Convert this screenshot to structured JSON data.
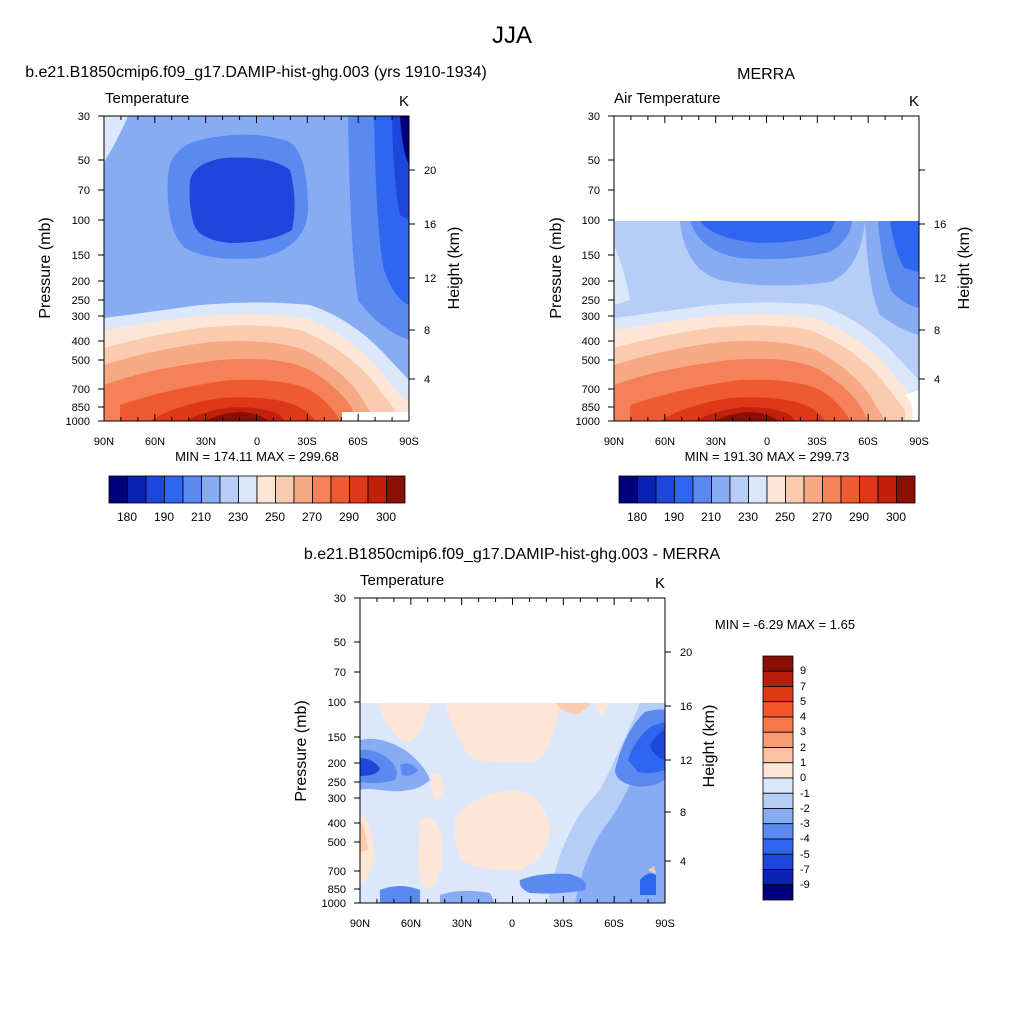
{
  "suptitle": "JJA",
  "chart_data": [
    {
      "type": "contour",
      "panel": "model",
      "title": "b.e21.B1850cmip6.f09_g17.DAMIP-hist-ghg.003 (yrs 1910-1934)",
      "left_label": "Temperature",
      "right_label": "K",
      "ylabel": "Pressure (mb)",
      "ylabel_right": "Height (km)",
      "x_ticks": [
        "90N",
        "60N",
        "30N",
        "0",
        "30S",
        "60S",
        "90S"
      ],
      "y_ticks": [
        "30",
        "50",
        "70",
        "100",
        "150",
        "200",
        "250",
        "300",
        "400",
        "500",
        "700",
        "850",
        "1000"
      ],
      "y_ticks_right": [
        "20",
        "16",
        "12",
        "8",
        "4"
      ],
      "stats": "MIN = 174.11  MAX = 299.68",
      "colorbar_labels": [
        "180",
        "190",
        "210",
        "230",
        "250",
        "270",
        "290",
        "300"
      ],
      "colorbar_colors": [
        "#00007f",
        "#0a22b4",
        "#1e46dc",
        "#2e66f0",
        "#5a8af0",
        "#88acf4",
        "#b6cdf8",
        "#dbe8fb",
        "#fde6d6",
        "#fbcbb0",
        "#f7a985",
        "#f48158",
        "#ee5b33",
        "#de3818",
        "#c2200c",
        "#8a0f05"
      ]
    },
    {
      "type": "contour",
      "panel": "observation",
      "title": "MERRA",
      "left_label": "Air Temperature",
      "right_label": "K",
      "ylabel": "Pressure (mb)",
      "ylabel_right": "Height (km)",
      "x_ticks": [
        "90N",
        "60N",
        "30N",
        "0",
        "30S",
        "60S",
        "90S"
      ],
      "y_ticks": [
        "30",
        "50",
        "70",
        "100",
        "150",
        "200",
        "250",
        "300",
        "400",
        "500",
        "700",
        "850",
        "1000"
      ],
      "y_ticks_right": [
        "16",
        "12",
        "8",
        "4"
      ],
      "stats": "MIN = 191.30  MAX = 299.73",
      "colorbar_labels": [
        "180",
        "190",
        "210",
        "230",
        "250",
        "270",
        "290",
        "300"
      ],
      "colorbar_colors": [
        "#00007f",
        "#0a22b4",
        "#1e46dc",
        "#2e66f0",
        "#5a8af0",
        "#88acf4",
        "#b6cdf8",
        "#dbe8fb",
        "#fde6d6",
        "#fbcbb0",
        "#f7a985",
        "#f48158",
        "#ee5b33",
        "#de3818",
        "#c2200c",
        "#8a0f05"
      ]
    },
    {
      "type": "contour",
      "panel": "difference",
      "title": "b.e21.B1850cmip6.f09_g17.DAMIP-hist-ghg.003 - MERRA",
      "left_label": "Temperature",
      "right_label": "K",
      "ylabel": "Pressure (mb)",
      "ylabel_right": "Height (km)",
      "x_ticks": [
        "90N",
        "60N",
        "30N",
        "0",
        "30S",
        "60S",
        "90S"
      ],
      "y_ticks": [
        "30",
        "50",
        "70",
        "100",
        "150",
        "200",
        "250",
        "300",
        "400",
        "500",
        "700",
        "850",
        "1000"
      ],
      "y_ticks_right": [
        "20",
        "16",
        "12",
        "8",
        "4"
      ],
      "stats": "MIN =  -6.29  MAX =   1.65",
      "colorbar_labels": [
        "9",
        "7",
        "5",
        "4",
        "3",
        "2",
        "1",
        "0",
        "-1",
        "-2",
        "-3",
        "-4",
        "-5",
        "-7",
        "-9"
      ],
      "colorbar_colors": [
        "#8a0f05",
        "#b81c0a",
        "#dd3814",
        "#f2562a",
        "#f6784a",
        "#f89c74",
        "#fbc3a4",
        "#fde6d6",
        "#dbe8fb",
        "#b6cdf8",
        "#88acf4",
        "#5a8af0",
        "#2e66f0",
        "#1e46dc",
        "#0a22b4",
        "#00007f"
      ]
    }
  ]
}
